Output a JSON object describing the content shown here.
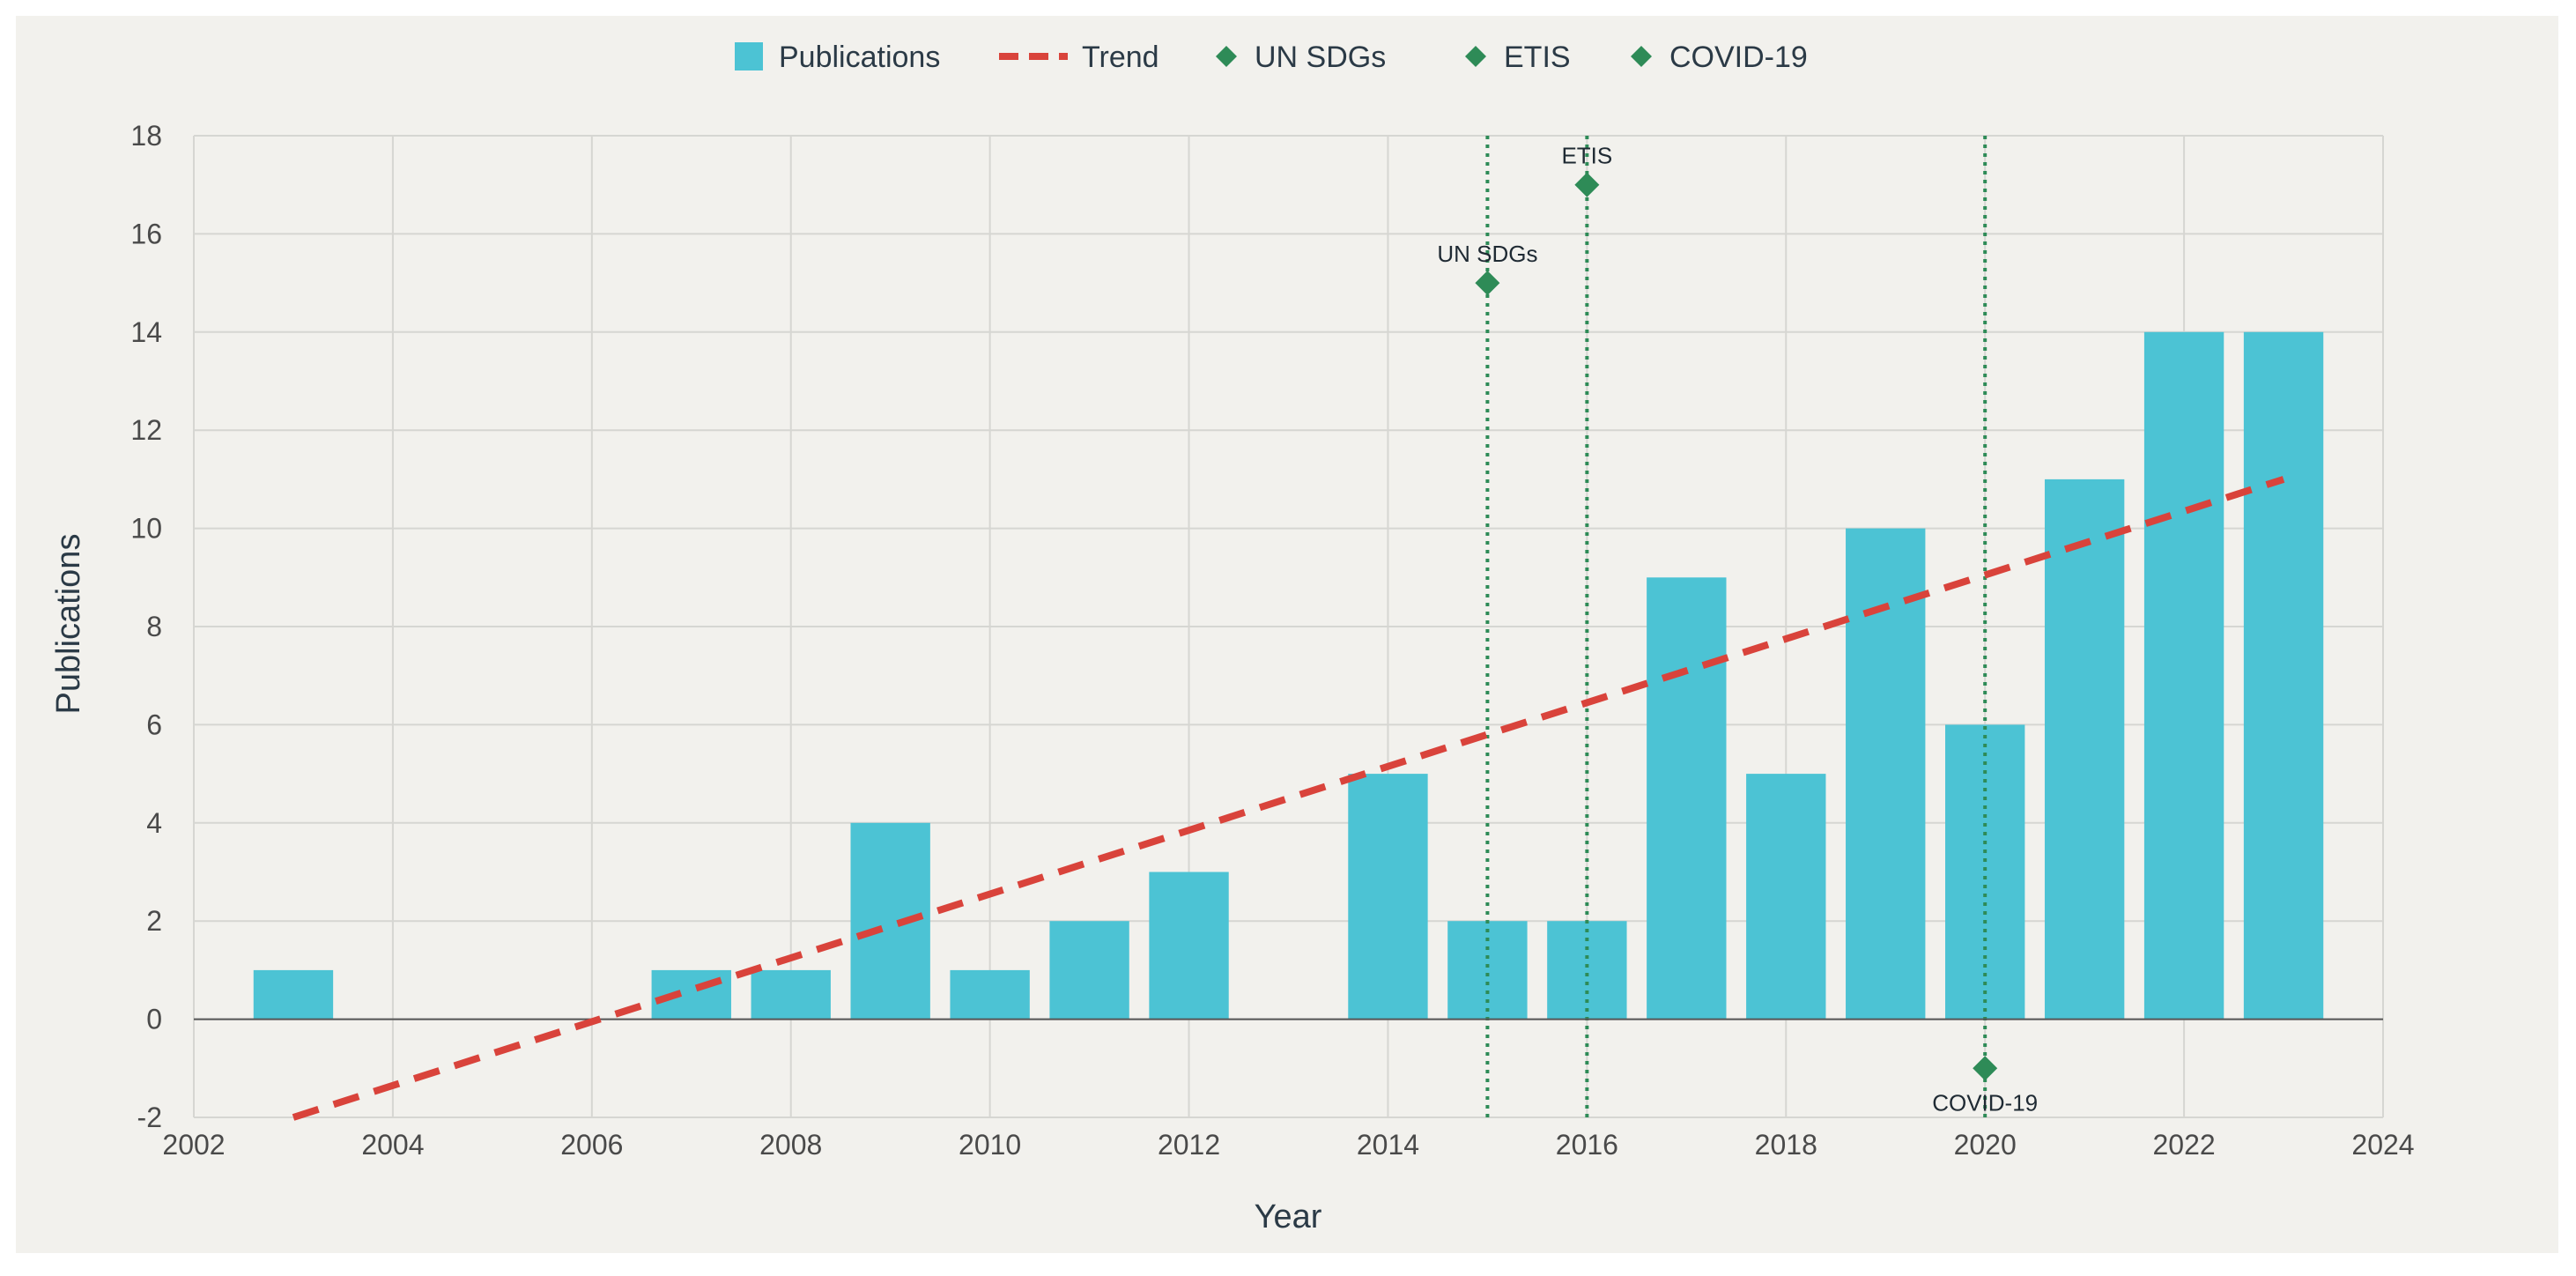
{
  "chart_data": {
    "type": "bar",
    "xlabel": "Year",
    "ylabel": "Publications",
    "xlim": [
      2002,
      2024
    ],
    "ylim": [
      -2,
      18
    ],
    "x_ticks": [
      2002,
      2004,
      2006,
      2008,
      2010,
      2012,
      2014,
      2016,
      2018,
      2020,
      2022,
      2024
    ],
    "y_ticks": [
      -2,
      0,
      2,
      4,
      6,
      8,
      10,
      12,
      14,
      16,
      18
    ],
    "grid": true,
    "legend_position": "top-center",
    "series": [
      {
        "name": "Publications",
        "type": "bar",
        "color": "#4cc3d4",
        "x": [
          2003,
          2007,
          2008,
          2009,
          2010,
          2011,
          2012,
          2014,
          2015,
          2016,
          2017,
          2018,
          2019,
          2020,
          2021,
          2022,
          2023
        ],
        "values": [
          1,
          1,
          1,
          4,
          1,
          2,
          3,
          5,
          2,
          2,
          9,
          5,
          10,
          6,
          11,
          14,
          14
        ]
      },
      {
        "name": "Trend",
        "type": "line",
        "style": "dashed",
        "color": "#d9433b",
        "x": [
          2003,
          2023
        ],
        "values": [
          -2.0,
          11.0
        ]
      }
    ],
    "events": [
      {
        "name": "UN SDGs",
        "label": "UN SDGs",
        "x": 2015,
        "y": 15,
        "color": "#2e8b57"
      },
      {
        "name": "ETIS",
        "label": "ETIS",
        "x": 2016,
        "y": 17,
        "color": "#2e8b57"
      },
      {
        "name": "COVID-19",
        "label": "COVID-19",
        "x": 2020,
        "y": -1,
        "color": "#2e8b57"
      }
    ]
  },
  "legend": {
    "items": [
      {
        "label": "Publications",
        "symbol": "square",
        "color": "#4cc3d4"
      },
      {
        "label": "Trend",
        "symbol": "dash",
        "color": "#d9433b"
      },
      {
        "label": "UN SDGs",
        "symbol": "diamond",
        "color": "#2e8b57"
      },
      {
        "label": "ETIS",
        "symbol": "diamond",
        "color": "#2e8b57"
      },
      {
        "label": "COVID-19",
        "symbol": "diamond",
        "color": "#2e8b57"
      }
    ]
  }
}
